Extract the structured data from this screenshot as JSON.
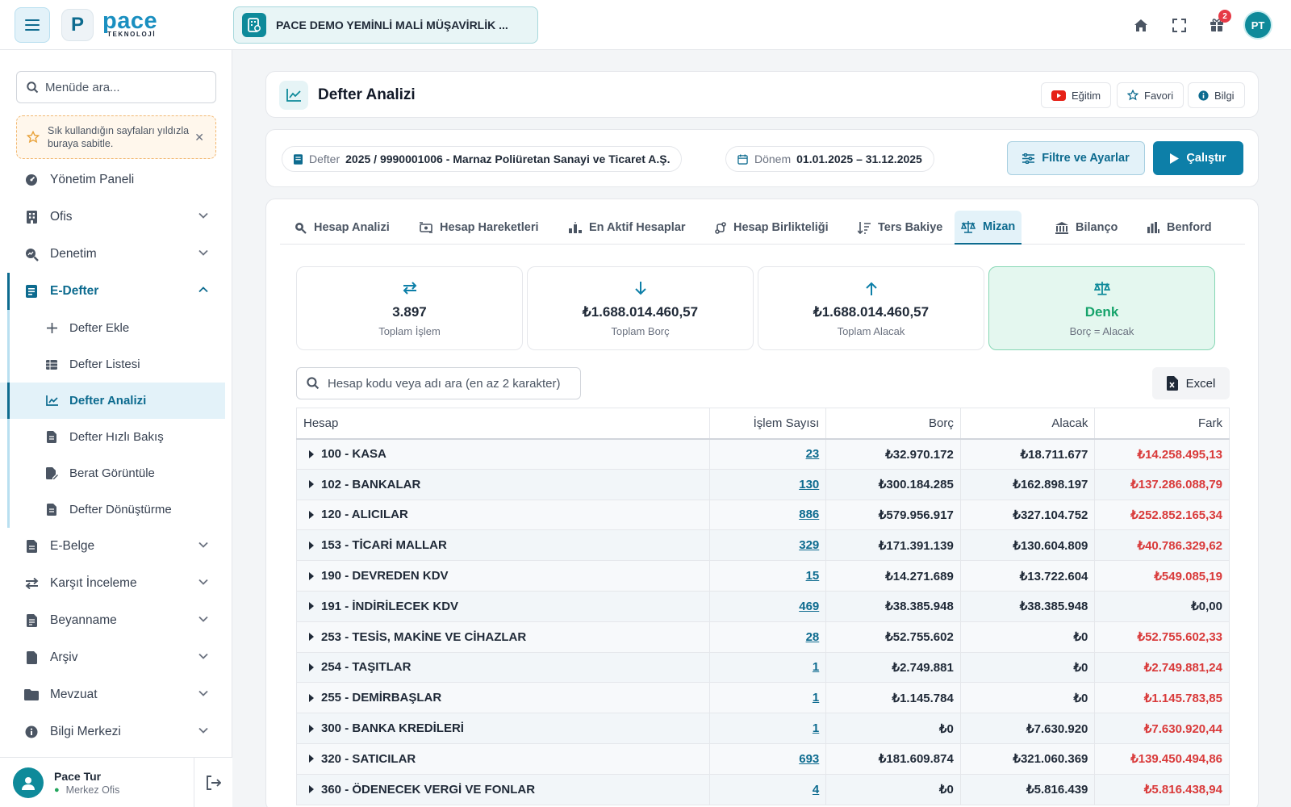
{
  "topbar": {
    "logo_letter": "P",
    "logo_name": "pace",
    "logo_sub": "TEKNOLOJİ",
    "company": "PACE DEMO YEMİNLİ MALİ MÜŞAVİRLİK ...",
    "notification_count": "2",
    "avatar_initials": "PT"
  },
  "sidebar": {
    "search_placeholder": "Menüde ara...",
    "pin_hint": "Sık kullandığın sayfaları yıldızla buraya sabitle.",
    "items_top": [
      {
        "label": "Yönetim Paneli",
        "icon": "gauge-icon"
      },
      {
        "label": "Ofis",
        "icon": "building-icon"
      },
      {
        "label": "Denetim",
        "icon": "search-chart-icon"
      },
      {
        "label": "E-Defter",
        "icon": "book-icon"
      }
    ],
    "sub_items": [
      {
        "label": "Defter Ekle",
        "icon": "plus-icon"
      },
      {
        "label": "Defter Listesi",
        "icon": "table-icon"
      },
      {
        "label": "Defter Analizi",
        "icon": "chart-line-icon"
      },
      {
        "label": "Defter Hızlı Bakış",
        "icon": "document-icon"
      },
      {
        "label": "Berat Görüntüle",
        "icon": "file-sign-icon"
      },
      {
        "label": "Defter Dönüştürme",
        "icon": "document-icon"
      }
    ],
    "items_bottom": [
      {
        "label": "E-Belge",
        "icon": "file-icon"
      },
      {
        "label": "Karşıt İnceleme",
        "icon": "swap-icon"
      },
      {
        "label": "Beyanname",
        "icon": "file-text-icon"
      },
      {
        "label": "Arşiv",
        "icon": "file-icon"
      },
      {
        "label": "Mevzuat",
        "icon": "folder-icon"
      },
      {
        "label": "Bilgi Merkezi",
        "icon": "info-icon"
      }
    ],
    "user": {
      "name": "Pace Tur",
      "office": "Merkez Ofis"
    }
  },
  "page": {
    "title": "Defter Analizi",
    "buttons": {
      "training": "Eğitim",
      "favorite": "Favori",
      "info": "Bilgi"
    }
  },
  "filter": {
    "defter_label": "Defter",
    "defter_value": "2025 / 9990001006 - Marnaz Poliüretan Sanayi ve Ticaret A.Ş.",
    "donem_label": "Dönem",
    "donem_value": "01.01.2025 – 31.12.2025",
    "filter_button": "Filtre ve Ayarlar",
    "run_button": "Çalıştır"
  },
  "tabs": [
    {
      "label": "Hesap Analizi",
      "icon": "search-icon",
      "active": false
    },
    {
      "label": "Hesap Hareketleri",
      "icon": "exchange-icon",
      "active": false
    },
    {
      "label": "En Aktif Hesaplar",
      "icon": "ranking-icon",
      "active": false
    },
    {
      "label": "Hesap Birlikteliği",
      "icon": "link-icon",
      "active": false
    },
    {
      "label": "Ters Bakiye",
      "icon": "sort-icon",
      "active": false
    },
    {
      "label": "Mizan",
      "icon": "scale-icon",
      "active": true
    },
    {
      "label": "Bilanço",
      "icon": "bank-icon",
      "active": false
    },
    {
      "label": "Benford",
      "icon": "bar-chart-icon",
      "active": false
    }
  ],
  "stats": [
    {
      "value": "3.897",
      "label": "Toplam İşlem",
      "icon": "transfer-icon"
    },
    {
      "value": "₺1.688.014.460,57",
      "label": "Toplam Borç",
      "icon": "arrow-down-icon"
    },
    {
      "value": "₺1.688.014.460,57",
      "label": "Toplam Alacak",
      "icon": "arrow-up-icon"
    },
    {
      "value": "Denk",
      "label": "Borç = Alacak",
      "icon": "scale-icon"
    }
  ],
  "table": {
    "search_placeholder": "Hesap kodu veya adı ara (en az 2 karakter)",
    "excel_label": "Excel",
    "headers": {
      "hesap": "Hesap",
      "count": "İşlem Sayısı",
      "borc": "Borç",
      "alacak": "Alacak",
      "fark": "Fark"
    },
    "rows": [
      {
        "hesap": "100 - KASA",
        "count": "23",
        "borc": "₺32.970.172",
        "alacak": "₺18.711.677",
        "fark": "₺14.258.495,13",
        "zero": false
      },
      {
        "hesap": "102 - BANKALAR",
        "count": "130",
        "borc": "₺300.184.285",
        "alacak": "₺162.898.197",
        "fark": "₺137.286.088,79",
        "zero": false
      },
      {
        "hesap": "120 - ALICILAR",
        "count": "886",
        "borc": "₺579.956.917",
        "alacak": "₺327.104.752",
        "fark": "₺252.852.165,34",
        "zero": false
      },
      {
        "hesap": "153 - TİCARİ MALLAR",
        "count": "329",
        "borc": "₺171.391.139",
        "alacak": "₺130.604.809",
        "fark": "₺40.786.329,62",
        "zero": false
      },
      {
        "hesap": "190 - DEVREDEN KDV",
        "count": "15",
        "borc": "₺14.271.689",
        "alacak": "₺13.722.604",
        "fark": "₺549.085,19",
        "zero": false
      },
      {
        "hesap": "191 - İNDİRİLECEK KDV",
        "count": "469",
        "borc": "₺38.385.948",
        "alacak": "₺38.385.948",
        "fark": "₺0,00",
        "zero": true
      },
      {
        "hesap": "253 - TESİS, MAKİNE VE CİHAZLAR",
        "count": "28",
        "borc": "₺52.755.602",
        "alacak": "₺0",
        "fark": "₺52.755.602,33",
        "zero": false
      },
      {
        "hesap": "254 - TAŞITLAR",
        "count": "1",
        "borc": "₺2.749.881",
        "alacak": "₺0",
        "fark": "₺2.749.881,24",
        "zero": false
      },
      {
        "hesap": "255 - DEMİRBAŞLAR",
        "count": "1",
        "borc": "₺1.145.784",
        "alacak": "₺0",
        "fark": "₺1.145.783,85",
        "zero": false
      },
      {
        "hesap": "300 - BANKA KREDİLERİ",
        "count": "1",
        "borc": "₺0",
        "alacak": "₺7.630.920",
        "fark": "₺7.630.920,44",
        "zero": false
      },
      {
        "hesap": "320 - SATICILAR",
        "count": "693",
        "borc": "₺181.609.874",
        "alacak": "₺321.060.369",
        "fark": "₺139.450.494,86",
        "zero": false
      },
      {
        "hesap": "360 - ÖDENECEK VERGİ VE FONLAR",
        "count": "4",
        "borc": "₺0",
        "alacak": "₺5.816.439",
        "fark": "₺5.816.438,94",
        "zero": false
      }
    ]
  },
  "colors": {
    "accent": "#0d7fa8",
    "teal": "#0e8a9a",
    "negative": "#d93a3a",
    "positive": "#16a36b"
  }
}
